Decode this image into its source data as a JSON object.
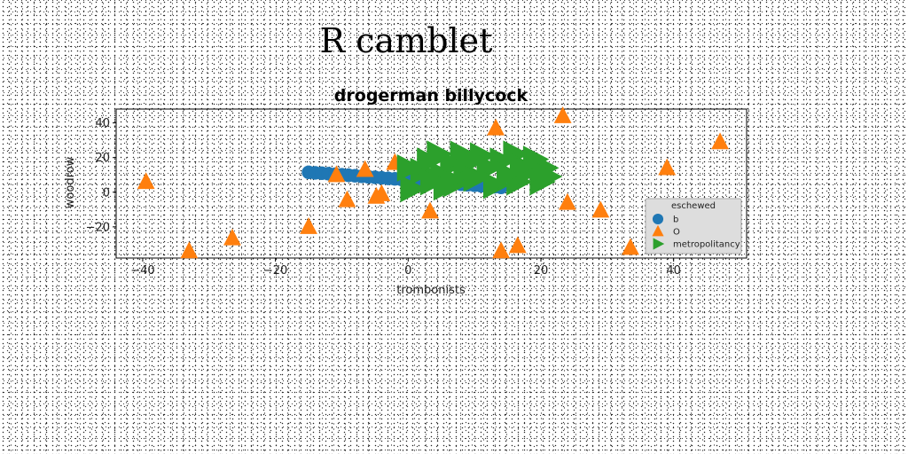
{
  "page": {
    "title": "R camblet"
  },
  "chart_data": {
    "type": "scatter",
    "title": "drogerman billycock",
    "xlabel": "trombonists",
    "ylabel": "woodrow",
    "xlim": [
      -44,
      51
    ],
    "ylim": [
      -38,
      48
    ],
    "xticks": [
      -40,
      -20,
      0,
      20,
      40
    ],
    "yticks": [
      -20,
      0,
      20,
      40
    ],
    "legend": {
      "title": "eschewed",
      "placement": "lower-right"
    },
    "series": [
      {
        "name": "b",
        "marker": "circle",
        "color": "#1f77b4",
        "points": [
          [
            -15.0,
            11.5
          ],
          [
            -14.0,
            11.2
          ],
          [
            -13.0,
            11.0
          ],
          [
            -12.0,
            10.7
          ],
          [
            -11.0,
            10.4
          ],
          [
            -10.0,
            10.1
          ],
          [
            -9.0,
            9.8
          ],
          [
            -8.0,
            9.5
          ],
          [
            -7.0,
            9.2
          ],
          [
            -6.0,
            8.9
          ],
          [
            -5.0,
            8.6
          ],
          [
            -4.0,
            8.3
          ],
          [
            -3.0,
            8.0
          ],
          [
            -2.0,
            7.7
          ],
          [
            -1.0,
            7.4
          ],
          [
            0.0,
            7.1
          ],
          [
            1.0,
            6.8
          ],
          [
            2.0,
            6.5
          ],
          [
            3.0,
            6.2
          ],
          [
            4.0,
            5.9
          ],
          [
            5.0,
            5.6
          ],
          [
            6.0,
            5.2
          ],
          [
            7.0,
            4.9
          ],
          [
            8.0,
            4.6
          ],
          [
            9.0,
            4.3
          ],
          [
            10.0,
            4.0
          ],
          [
            11.0,
            3.7
          ],
          [
            12.0,
            3.4
          ],
          [
            13.0,
            3.1
          ],
          [
            14.0,
            2.8
          ]
        ]
      },
      {
        "name": "O",
        "marker": "triangle-up",
        "color": "#ff7f0e",
        "points": [
          [
            -39.5,
            6.0
          ],
          [
            -33.0,
            -34.0
          ],
          [
            -26.5,
            -26.5
          ],
          [
            -15.0,
            -20.0
          ],
          [
            -10.8,
            10.0
          ],
          [
            -9.2,
            -4.5
          ],
          [
            -6.5,
            13.0
          ],
          [
            -4.8,
            -2.5
          ],
          [
            -4.0,
            -1.0
          ],
          [
            -2.0,
            17.0
          ],
          [
            3.3,
            -11.0
          ],
          [
            13.2,
            37.0
          ],
          [
            14.0,
            -34.0
          ],
          [
            16.5,
            -31.0
          ],
          [
            23.3,
            44.0
          ],
          [
            24.0,
            -6.0
          ],
          [
            29.0,
            -10.5
          ],
          [
            33.5,
            -32.0
          ],
          [
            39.0,
            14.0
          ],
          [
            47.0,
            29.0
          ]
        ]
      },
      {
        "name": "metropolitancy",
        "marker": "triangle-right",
        "color": "#2ca02c",
        "points": [
          [
            0.0,
            14.0
          ],
          [
            0.5,
            2.0
          ],
          [
            2.0,
            12.0
          ],
          [
            3.0,
            18.0
          ],
          [
            3.5,
            6.0
          ],
          [
            4.5,
            22.0
          ],
          [
            5.0,
            10.0
          ],
          [
            5.5,
            3.0
          ],
          [
            6.5,
            16.0
          ],
          [
            7.0,
            5.0
          ],
          [
            8.0,
            22.0
          ],
          [
            8.5,
            12.0
          ],
          [
            9.0,
            18.0
          ],
          [
            10.0,
            8.0
          ],
          [
            11.0,
            21.0
          ],
          [
            12.0,
            14.0
          ],
          [
            13.0,
            4.0
          ],
          [
            14.0,
            18.0
          ],
          [
            15.0,
            10.0
          ],
          [
            16.0,
            22.0
          ],
          [
            16.5,
            6.0
          ],
          [
            17.0,
            15.0
          ],
          [
            18.0,
            12.0
          ],
          [
            19.0,
            19.0
          ],
          [
            20.0,
            6.0
          ],
          [
            20.5,
            14.0
          ],
          [
            21.0,
            9.0
          ]
        ]
      }
    ]
  }
}
